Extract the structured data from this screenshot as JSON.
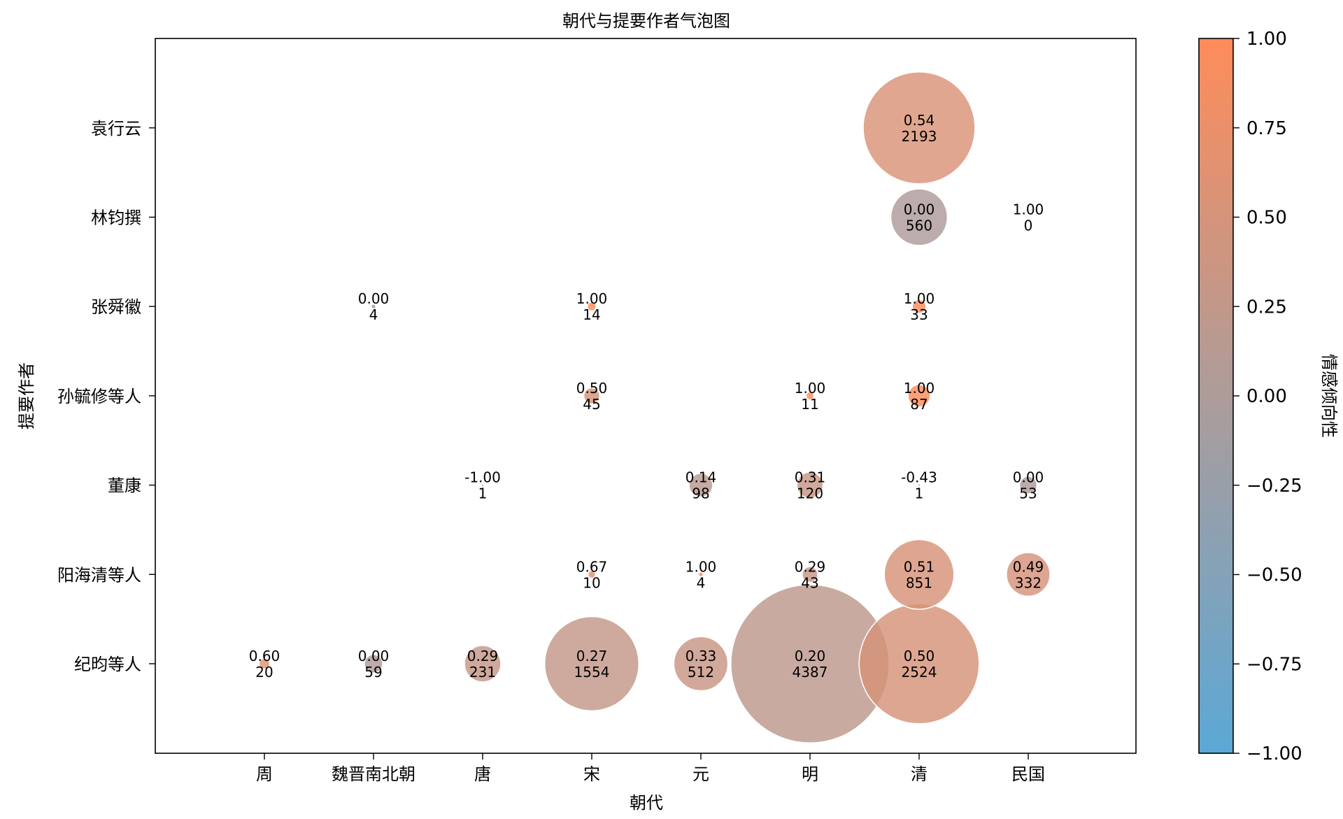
{
  "chart_data": {
    "type": "scatter",
    "title": "朝代与提要作者气泡图",
    "xlabel": "朝代",
    "ylabel": "提要作者",
    "colorbar_label": "情感倾向性",
    "x_categories": [
      "周",
      "魏晋南北朝",
      "唐",
      "宋",
      "元",
      "明",
      "清",
      "民国"
    ],
    "y_categories": [
      "纪昀等人",
      "阳海清等人",
      "董康",
      "孙毓修等人",
      "张舜徽",
      "林钧撰",
      "袁行云"
    ],
    "size_meaning": "count",
    "color_meaning": "sentiment",
    "color_range": [
      -1.0,
      1.0
    ],
    "colormap": [
      "#5ba8d6",
      "#ff8c5a"
    ],
    "colorbar_ticks": [
      "1.00",
      "0.75",
      "0.50",
      "0.25",
      "0.00",
      "−0.25",
      "−0.50",
      "−0.75",
      "−1.00"
    ],
    "colorbar_tick_values": [
      1.0,
      0.75,
      0.5,
      0.25,
      0.0,
      -0.25,
      -0.5,
      -0.75,
      -1.0
    ],
    "grid": false,
    "points": [
      {
        "x": "周",
        "y": "纪昀等人",
        "sentiment": 0.6,
        "count": 20,
        "label_top": "0.60",
        "label_bottom": "20"
      },
      {
        "x": "魏晋南北朝",
        "y": "纪昀等人",
        "sentiment": 0.0,
        "count": 59,
        "label_top": "0.00",
        "label_bottom": "59"
      },
      {
        "x": "唐",
        "y": "纪昀等人",
        "sentiment": 0.29,
        "count": 231,
        "label_top": "0.29",
        "label_bottom": "231"
      },
      {
        "x": "宋",
        "y": "纪昀等人",
        "sentiment": 0.27,
        "count": 1554,
        "label_top": "0.27",
        "label_bottom": "1554"
      },
      {
        "x": "元",
        "y": "纪昀等人",
        "sentiment": 0.33,
        "count": 512,
        "label_top": "0.33",
        "label_bottom": "512"
      },
      {
        "x": "明",
        "y": "纪昀等人",
        "sentiment": 0.2,
        "count": 4387,
        "label_top": "0.20",
        "label_bottom": "4387"
      },
      {
        "x": "清",
        "y": "纪昀等人",
        "sentiment": 0.5,
        "count": 2524,
        "label_top": "0.50",
        "label_bottom": "2524"
      },
      {
        "x": "宋",
        "y": "阳海清等人",
        "sentiment": 0.67,
        "count": 10,
        "label_top": "0.67",
        "label_bottom": "10"
      },
      {
        "x": "元",
        "y": "阳海清等人",
        "sentiment": 1.0,
        "count": 4,
        "label_top": "1.00",
        "label_bottom": "4"
      },
      {
        "x": "明",
        "y": "阳海清等人",
        "sentiment": 0.29,
        "count": 43,
        "label_top": "0.29",
        "label_bottom": "43"
      },
      {
        "x": "清",
        "y": "阳海清等人",
        "sentiment": 0.51,
        "count": 851,
        "label_top": "0.51",
        "label_bottom": "851"
      },
      {
        "x": "民国",
        "y": "阳海清等人",
        "sentiment": 0.49,
        "count": 332,
        "label_top": "0.49",
        "label_bottom": "332"
      },
      {
        "x": "唐",
        "y": "董康",
        "sentiment": -1.0,
        "count": 1,
        "label_top": "-1.00",
        "label_bottom": "1"
      },
      {
        "x": "元",
        "y": "董康",
        "sentiment": 0.14,
        "count": 98,
        "label_top": "0.14",
        "label_bottom": "98"
      },
      {
        "x": "明",
        "y": "董康",
        "sentiment": 0.31,
        "count": 120,
        "label_top": "0.31",
        "label_bottom": "120"
      },
      {
        "x": "清",
        "y": "董康",
        "sentiment": -0.43,
        "count": 1,
        "label_top": "-0.43",
        "label_bottom": "1"
      },
      {
        "x": "民国",
        "y": "董康",
        "sentiment": 0.0,
        "count": 53,
        "label_top": "0.00",
        "label_bottom": "53"
      },
      {
        "x": "宋",
        "y": "孙毓修等人",
        "sentiment": 0.5,
        "count": 45,
        "label_top": "0.50",
        "label_bottom": "45"
      },
      {
        "x": "明",
        "y": "孙毓修等人",
        "sentiment": 1.0,
        "count": 11,
        "label_top": "1.00",
        "label_bottom": "11"
      },
      {
        "x": "清",
        "y": "孙毓修等人",
        "sentiment": 1.0,
        "count": 87,
        "label_top": "1.00",
        "label_bottom": "87"
      },
      {
        "x": "魏晋南北朝",
        "y": "张舜徽",
        "sentiment": 0.0,
        "count": 4,
        "label_top": "0.00",
        "label_bottom": "4"
      },
      {
        "x": "宋",
        "y": "张舜徽",
        "sentiment": 1.0,
        "count": 14,
        "label_top": "1.00",
        "label_bottom": "14"
      },
      {
        "x": "清",
        "y": "张舜徽",
        "sentiment": 1.0,
        "count": 33,
        "label_top": "1.00",
        "label_bottom": "33"
      },
      {
        "x": "清",
        "y": "林钧撰",
        "sentiment": 0.0,
        "count": 560,
        "label_top": "0.00",
        "label_bottom": "560"
      },
      {
        "x": "民国",
        "y": "林钧撰",
        "sentiment": 1.0,
        "count": 0,
        "label_top": "1.00",
        "label_bottom": "0"
      },
      {
        "x": "清",
        "y": "袁行云",
        "sentiment": 0.54,
        "count": 2193,
        "label_top": "0.54",
        "label_bottom": "2193"
      }
    ]
  }
}
